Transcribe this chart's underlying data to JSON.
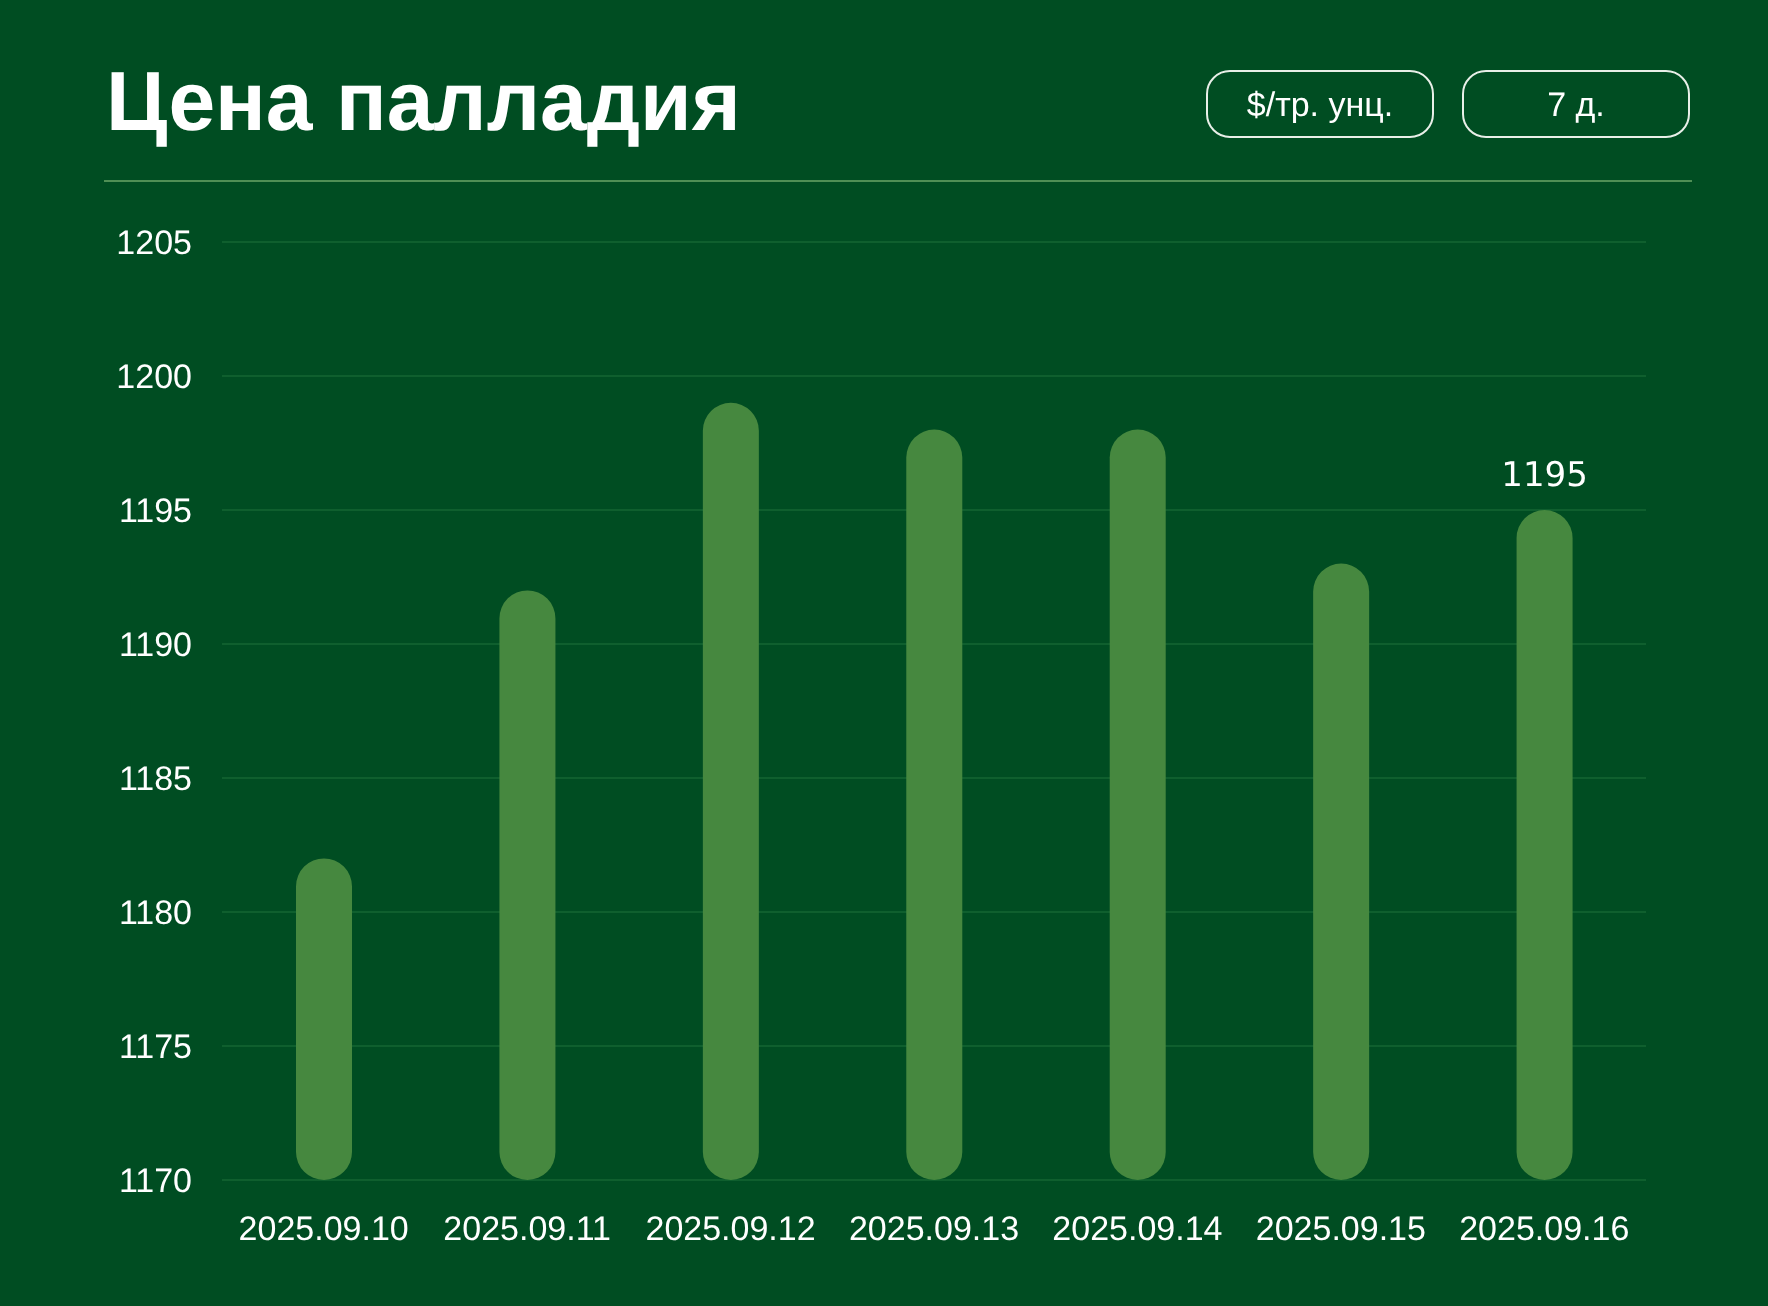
{
  "chart_data": {
    "type": "bar",
    "title": "Цена палладия",
    "ylabel": "$/тр. унц.",
    "annotations": [
      "7 д."
    ],
    "categories": [
      "2025.09.10",
      "2025.09.11",
      "2025.09.12",
      "2025.09.13",
      "2025.09.14",
      "2025.09.15",
      "2025.09.16"
    ],
    "values": [
      1182,
      1192,
      1199,
      1198,
      1198,
      1193,
      1195
    ],
    "value_labels": [
      null,
      null,
      null,
      null,
      null,
      null,
      "1195"
    ],
    "color": "#46883f",
    "ylim": [
      1170,
      1205
    ],
    "yticks": [
      1170,
      1175,
      1180,
      1185,
      1190,
      1195,
      1200,
      1205
    ],
    "grid": "y"
  }
}
